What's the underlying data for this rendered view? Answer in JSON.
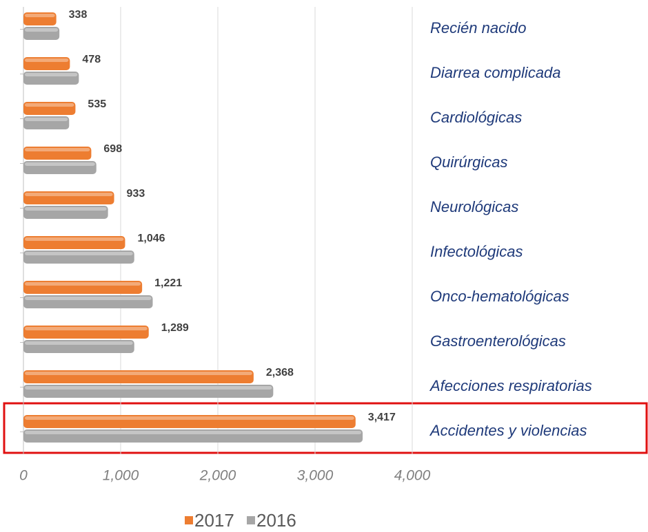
{
  "chart_data": {
    "type": "bar",
    "orientation": "horizontal",
    "categories": [
      "Recién nacido",
      "Diarrea complicada",
      "Cardiológicas",
      "Quirúrgicas",
      "Neurológicas",
      "Infectológicas",
      "Onco-hematológicas",
      "Gastroenterológicas",
      "Afecciones respiratorias",
      "Accidentes y violencias"
    ],
    "series": [
      {
        "name": "2017",
        "color": "#ed7d31",
        "values": [
          338,
          478,
          535,
          698,
          933,
          1046,
          1221,
          1289,
          2368,
          3417
        ],
        "value_labels": [
          "338",
          "478",
          "535",
          "698",
          "933",
          "1,046",
          "1,221",
          "1,289",
          "2,368",
          "3,417"
        ]
      },
      {
        "name": "2016",
        "color": "#a6a6a6",
        "values": [
          370,
          570,
          470,
          750,
          870,
          1140,
          1330,
          1140,
          2570,
          3490
        ]
      }
    ],
    "xlim": [
      0,
      4000
    ],
    "xticks": [
      0,
      {
        "value": 1000,
        "label": "1,000"
      },
      {
        "value": 2000,
        "label": "2,000"
      },
      {
        "value": 3000,
        "label": "3,000"
      },
      {
        "value": 4000,
        "label": "4,000"
      }
    ],
    "grid": true,
    "legend": "bottom"
  }
}
